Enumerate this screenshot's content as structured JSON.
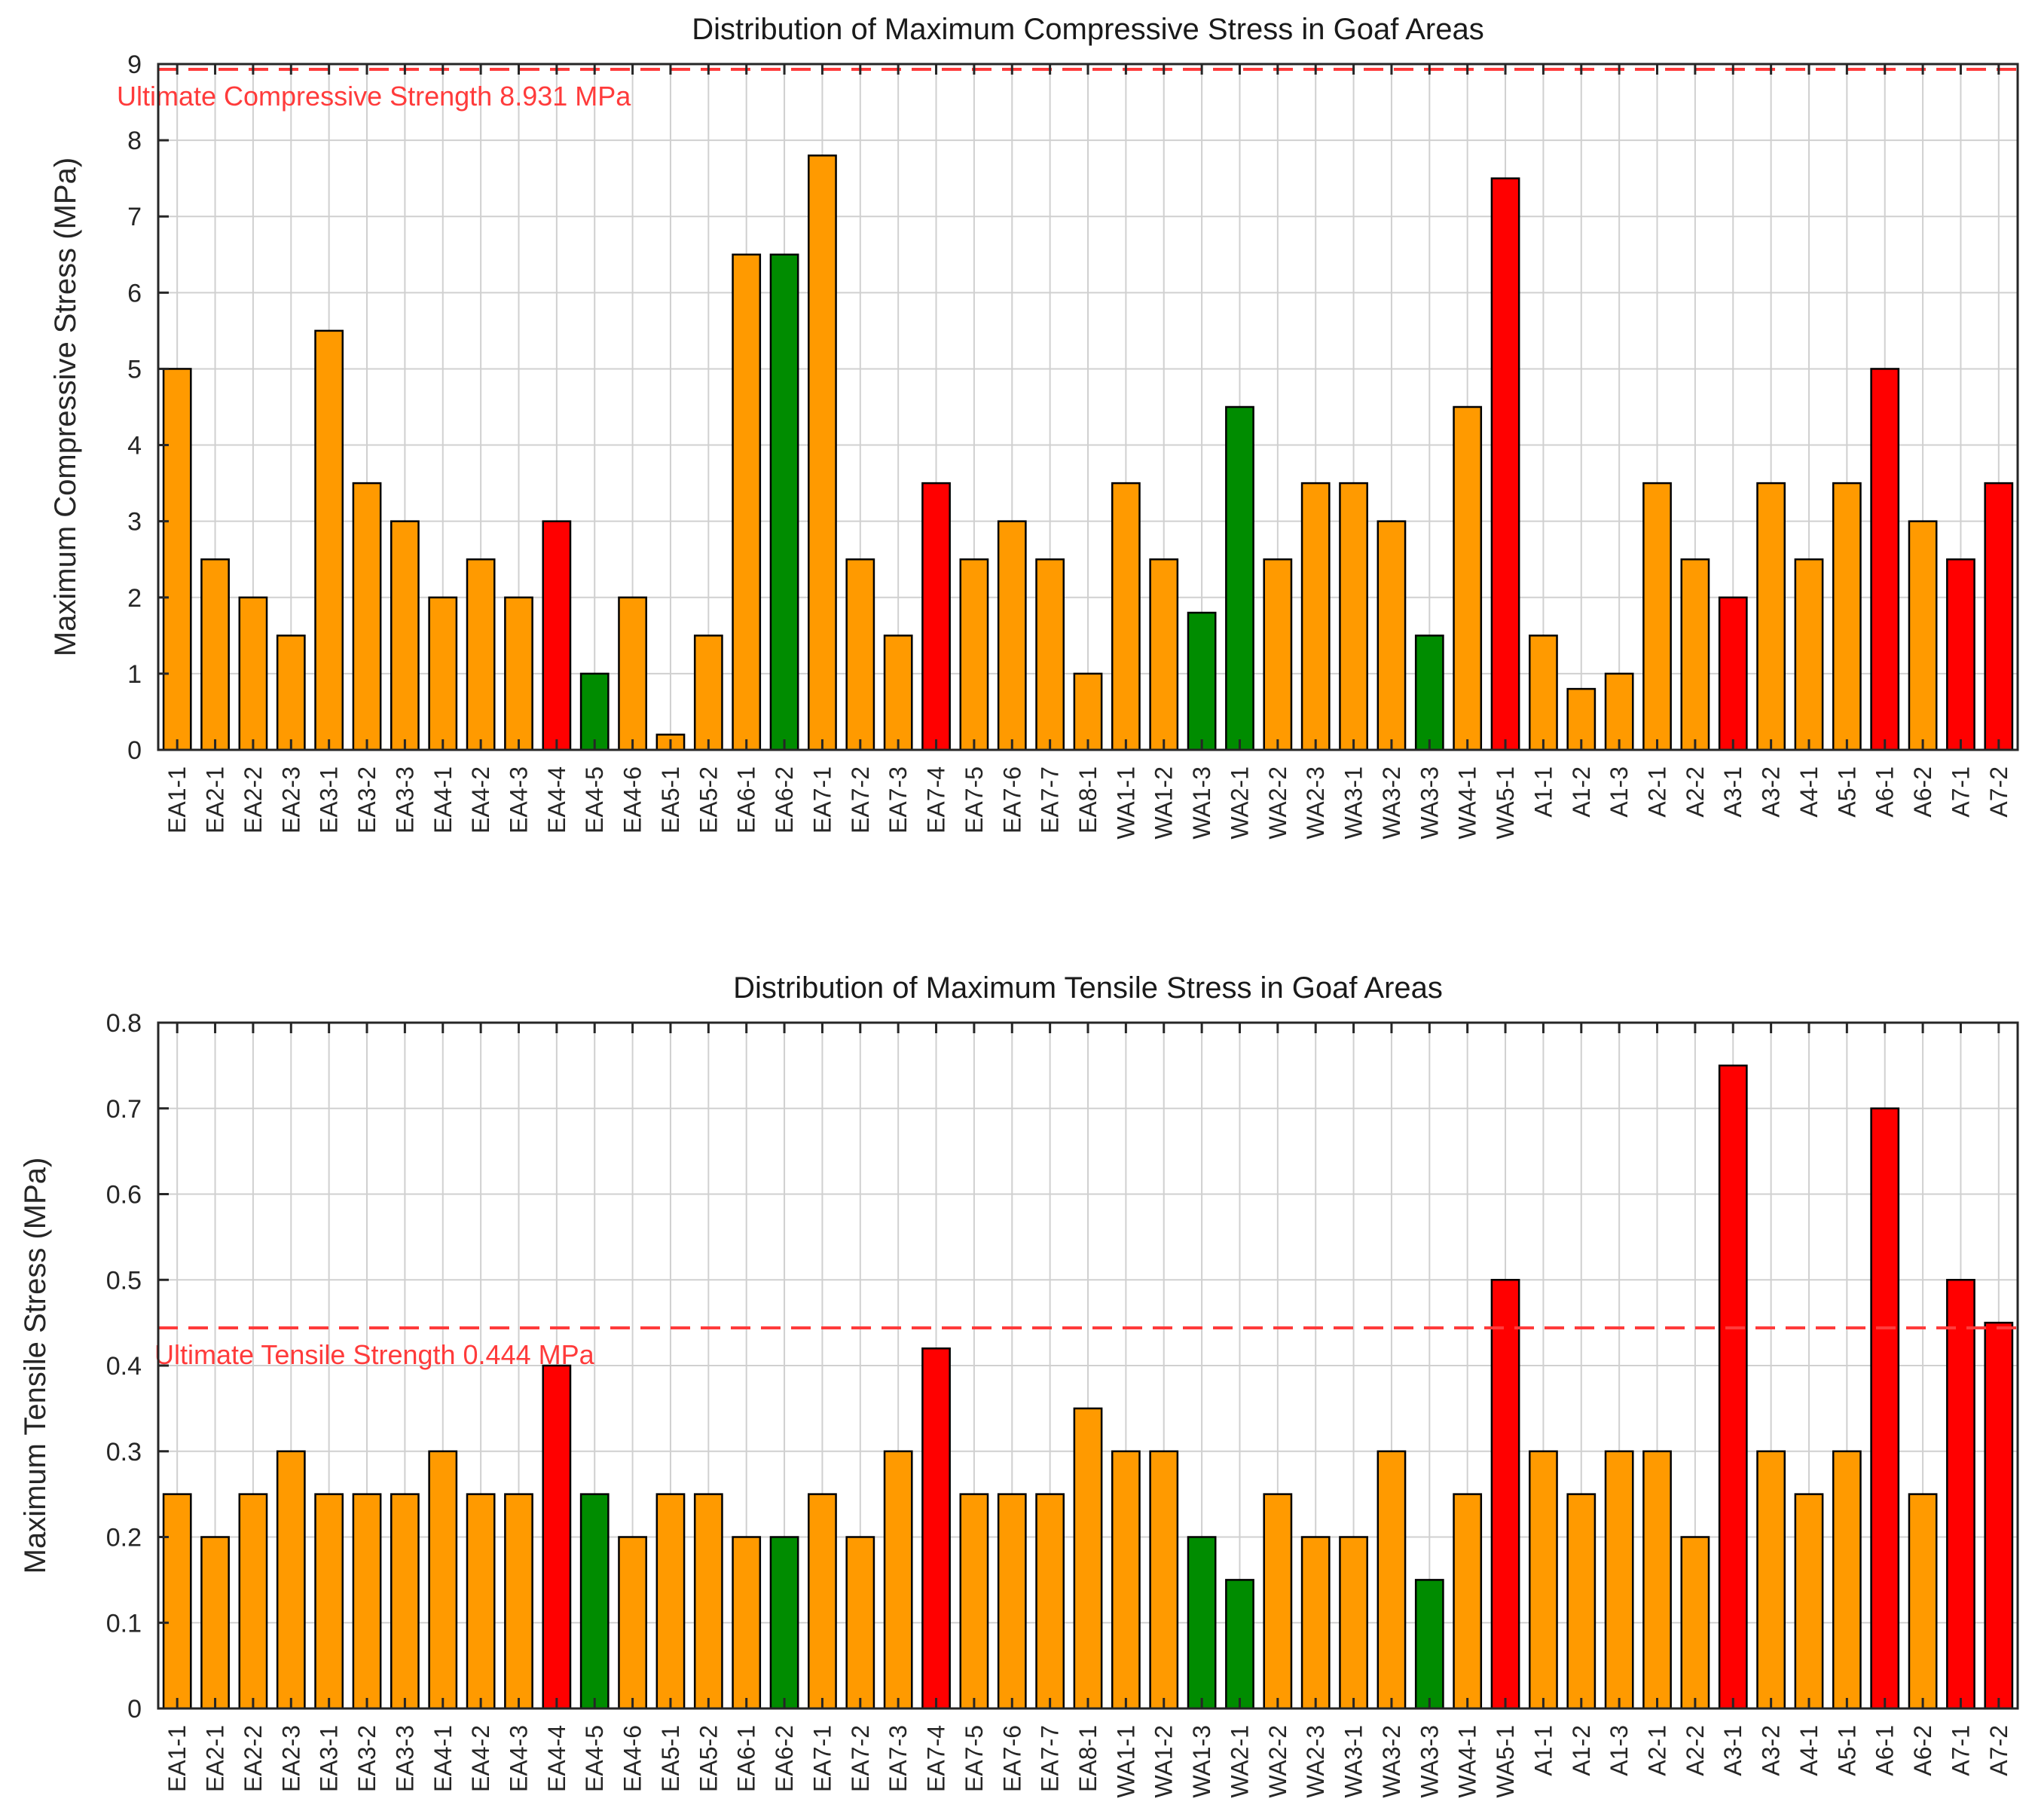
{
  "colors": {
    "orange": "#FF9A00",
    "green": "#008C00",
    "red": "#FF0000",
    "reference": "#FF3B3B",
    "grid": "#d0d0d0",
    "axis": "#262626"
  },
  "chart_data": [
    {
      "type": "bar",
      "title": "Distribution of Maximum Compressive Stress in Goaf Areas",
      "xlabel": "",
      "ylabel": "Maximum Compressive Stress (MPa)",
      "ylim": [
        0,
        9
      ],
      "yticks": [
        0,
        1,
        2,
        3,
        4,
        5,
        6,
        7,
        8,
        9
      ],
      "ytick_labels": [
        "0",
        "1",
        "2",
        "3",
        "4",
        "5",
        "6",
        "7",
        "8",
        "9"
      ],
      "grid": true,
      "categories": [
        "EA1-1",
        "EA2-1",
        "EA2-2",
        "EA2-3",
        "EA3-1",
        "EA3-2",
        "EA3-3",
        "EA4-1",
        "EA4-2",
        "EA4-3",
        "EA4-4",
        "EA4-5",
        "EA4-6",
        "EA5-1",
        "EA5-2",
        "EA6-1",
        "EA6-2",
        "EA7-1",
        "EA7-2",
        "EA7-3",
        "EA7-4",
        "EA7-5",
        "EA7-6",
        "EA7-7",
        "EA8-1",
        "WA1-1",
        "WA1-2",
        "WA1-3",
        "WA2-1",
        "WA2-2",
        "WA2-3",
        "WA3-1",
        "WA3-2",
        "WA3-3",
        "WA4-1",
        "WA5-1",
        "A1-1",
        "A1-2",
        "A1-3",
        "A2-1",
        "A2-2",
        "A3-1",
        "A3-2",
        "A4-1",
        "A5-1",
        "A6-1",
        "A6-2",
        "A7-1",
        "A7-2"
      ],
      "values": [
        5,
        2.5,
        2,
        1.5,
        5.5,
        3.5,
        3,
        2,
        2.5,
        2,
        3,
        1,
        2,
        0.2,
        1.5,
        6.5,
        6.5,
        7.8,
        2.5,
        1.5,
        3.5,
        2.5,
        3,
        2.5,
        1,
        3.5,
        2.5,
        1.8,
        4.5,
        2.5,
        3.5,
        3.5,
        3,
        1.5,
        4.5,
        7.5,
        1.5,
        0.8,
        1,
        3.5,
        2.5,
        2,
        3.5,
        2.5,
        3.5,
        5,
        3,
        2.5,
        3.5
      ],
      "bar_colors": [
        "orange",
        "orange",
        "orange",
        "orange",
        "orange",
        "orange",
        "orange",
        "orange",
        "orange",
        "orange",
        "red",
        "green",
        "orange",
        "orange",
        "orange",
        "orange",
        "green",
        "orange",
        "orange",
        "orange",
        "red",
        "orange",
        "orange",
        "orange",
        "orange",
        "orange",
        "orange",
        "green",
        "green",
        "orange",
        "orange",
        "orange",
        "orange",
        "green",
        "orange",
        "red",
        "orange",
        "orange",
        "orange",
        "orange",
        "orange",
        "red",
        "orange",
        "orange",
        "orange",
        "red",
        "orange",
        "red",
        "red"
      ],
      "reference_line": {
        "value": 8.931,
        "label": "Ultimate Compressive Strength 8.931 MPa",
        "style": "dashed"
      }
    },
    {
      "type": "bar",
      "title": "Distribution of Maximum Tensile Stress in Goaf Areas",
      "xlabel": "",
      "ylabel": "Maximum Tensile Stress (MPa)",
      "ylim": [
        0,
        0.8
      ],
      "yticks": [
        0,
        0.1,
        0.2,
        0.3,
        0.4,
        0.5,
        0.6,
        0.7,
        0.8
      ],
      "ytick_labels": [
        "0",
        "0.1",
        "0.2",
        "0.3",
        "0.4",
        "0.5",
        "0.6",
        "0.7",
        "0.8"
      ],
      "grid": true,
      "categories": [
        "EA1-1",
        "EA2-1",
        "EA2-2",
        "EA2-3",
        "EA3-1",
        "EA3-2",
        "EA3-3",
        "EA4-1",
        "EA4-2",
        "EA4-3",
        "EA4-4",
        "EA4-5",
        "EA4-6",
        "EA5-1",
        "EA5-2",
        "EA6-1",
        "EA6-2",
        "EA7-1",
        "EA7-2",
        "EA7-3",
        "EA7-4",
        "EA7-5",
        "EA7-6",
        "EA7-7",
        "EA8-1",
        "WA1-1",
        "WA1-2",
        "WA1-3",
        "WA2-1",
        "WA2-2",
        "WA2-3",
        "WA3-1",
        "WA3-2",
        "WA3-3",
        "WA4-1",
        "WA5-1",
        "A1-1",
        "A1-2",
        "A1-3",
        "A2-1",
        "A2-2",
        "A3-1",
        "A3-2",
        "A4-1",
        "A5-1",
        "A6-1",
        "A6-2",
        "A7-1",
        "A7-2"
      ],
      "values": [
        0.25,
        0.2,
        0.25,
        0.3,
        0.25,
        0.25,
        0.25,
        0.3,
        0.25,
        0.25,
        0.4,
        0.25,
        0.2,
        0.25,
        0.25,
        0.2,
        0.2,
        0.25,
        0.2,
        0.3,
        0.42,
        0.25,
        0.25,
        0.25,
        0.35,
        0.3,
        0.3,
        0.2,
        0.15,
        0.25,
        0.2,
        0.2,
        0.3,
        0.15,
        0.25,
        0.5,
        0.3,
        0.25,
        0.3,
        0.3,
        0.2,
        0.75,
        0.3,
        0.25,
        0.3,
        0.7,
        0.25,
        0.5,
        0.45
      ],
      "bar_colors": [
        "orange",
        "orange",
        "orange",
        "orange",
        "orange",
        "orange",
        "orange",
        "orange",
        "orange",
        "orange",
        "red",
        "green",
        "orange",
        "orange",
        "orange",
        "orange",
        "green",
        "orange",
        "orange",
        "orange",
        "red",
        "orange",
        "orange",
        "orange",
        "orange",
        "orange",
        "orange",
        "green",
        "green",
        "orange",
        "orange",
        "orange",
        "orange",
        "green",
        "orange",
        "red",
        "orange",
        "orange",
        "orange",
        "orange",
        "orange",
        "red",
        "orange",
        "orange",
        "orange",
        "red",
        "orange",
        "red",
        "red"
      ],
      "reference_line": {
        "value": 0.444,
        "label": "Ultimate Tensile Strength 0.444 MPa",
        "style": "dashed"
      }
    }
  ]
}
